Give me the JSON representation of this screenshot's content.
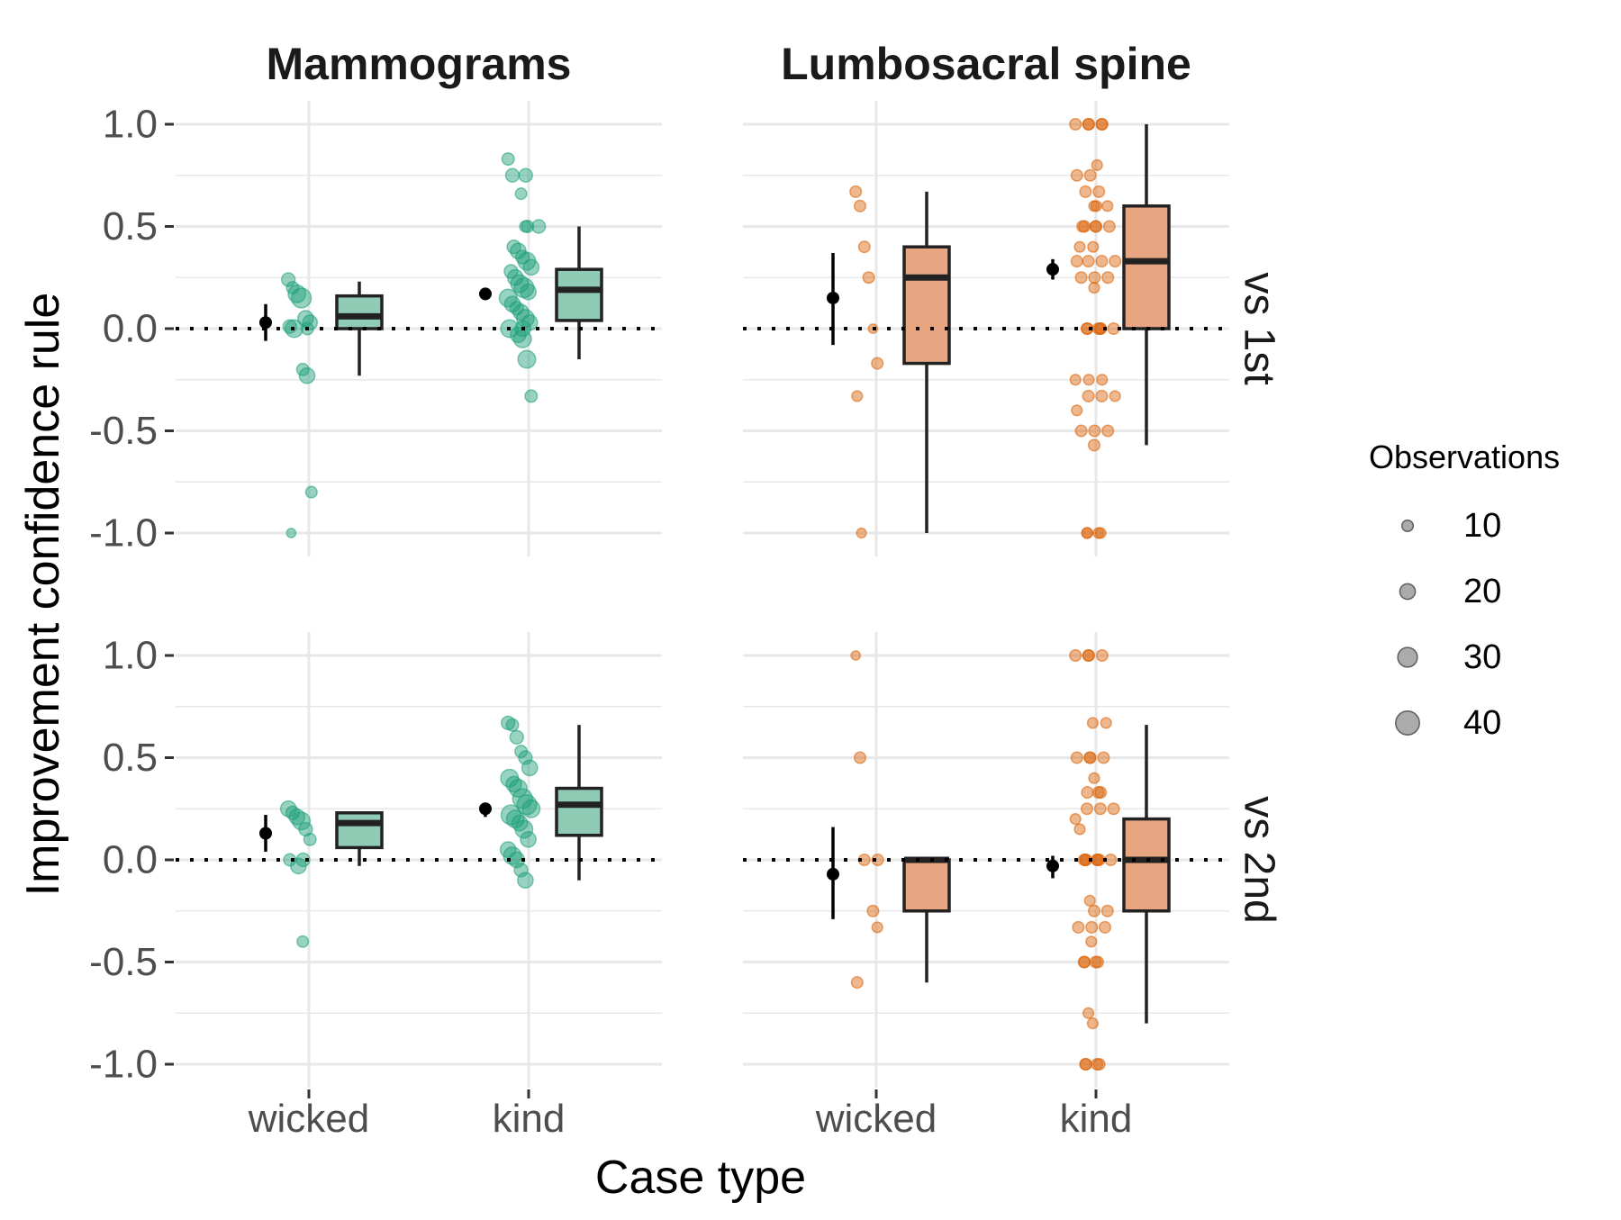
{
  "colors": {
    "mammograms": "#1b9e77",
    "mammograms_box": "#8fcbb5",
    "spine": "#d95f02",
    "spine_box": "#e8a582",
    "grid": "#e8e8e8",
    "text": "#4d4d4d"
  },
  "chart_data": {
    "type": "scatter",
    "columns": [
      "Mammograms",
      "Lumbosacral spine"
    ],
    "rows": [
      "vs 1st",
      "vs 2nd"
    ],
    "xlabel": "Case type",
    "ylabel": "Improvement confidence rule",
    "categories": [
      "wicked",
      "kind"
    ],
    "ylim": [
      -1.1,
      1.1
    ],
    "yticks": [
      {
        "value": 1.0,
        "label": "1.0"
      },
      {
        "value": 0.5,
        "label": "0.5"
      },
      {
        "value": 0.0,
        "label": "0.0"
      },
      {
        "value": -0.5,
        "label": "-0.5"
      },
      {
        "value": -1.0,
        "label": "-1.0"
      }
    ],
    "reference_line": 0,
    "legend": {
      "title": "Observations",
      "position": "right",
      "entries": [
        {
          "label": "10",
          "size": 10
        },
        {
          "label": "20",
          "size": 20
        },
        {
          "label": "30",
          "size": 30
        },
        {
          "label": "40",
          "size": 40
        }
      ]
    },
    "panels": [
      {
        "col": "Mammograms",
        "row": "vs 1st",
        "color_key": "mammograms",
        "groups": [
          {
            "category": "wicked",
            "mean": 0.03,
            "ci": [
              -0.06,
              0.12
            ],
            "box": {
              "min": -0.23,
              "q1": 0.0,
              "median": 0.06,
              "q3": 0.16,
              "max": 0.23
            },
            "points": [
              [
                0.24,
                15
              ],
              [
                0.2,
                12
              ],
              [
                0.17,
                25
              ],
              [
                0.15,
                30
              ],
              [
                0.05,
                20
              ],
              [
                0.03,
                18
              ],
              [
                0.01,
                15
              ],
              [
                0.0,
                25
              ],
              [
                0.0,
                12
              ],
              [
                -0.2,
                12
              ],
              [
                -0.23,
                20
              ],
              [
                -0.8,
                10
              ],
              [
                -1.0,
                5
              ]
            ]
          },
          {
            "category": "kind",
            "mean": 0.17,
            "ci": [
              0.14,
              0.2
            ],
            "box": {
              "min": -0.15,
              "q1": 0.04,
              "median": 0.19,
              "q3": 0.29,
              "max": 0.5
            },
            "points": [
              [
                0.83,
                12
              ],
              [
                0.75,
                15
              ],
              [
                0.75,
                15
              ],
              [
                0.66,
                10
              ],
              [
                0.5,
                10
              ],
              [
                0.5,
                15
              ],
              [
                0.5,
                12
              ],
              [
                0.4,
                15
              ],
              [
                0.38,
                20
              ],
              [
                0.35,
                15
              ],
              [
                0.33,
                25
              ],
              [
                0.3,
                20
              ],
              [
                0.28,
                15
              ],
              [
                0.25,
                20
              ],
              [
                0.22,
                25
              ],
              [
                0.2,
                30
              ],
              [
                0.18,
                20
              ],
              [
                0.15,
                25
              ],
              [
                0.12,
                20
              ],
              [
                0.1,
                15
              ],
              [
                0.08,
                20
              ],
              [
                0.05,
                25
              ],
              [
                0.03,
                20
              ],
              [
                0.0,
                25
              ],
              [
                0.0,
                20
              ],
              [
                -0.03,
                20
              ],
              [
                -0.05,
                25
              ],
              [
                -0.15,
                25
              ],
              [
                -0.33,
                12
              ]
            ]
          }
        ]
      },
      {
        "col": "Lumbosacral spine",
        "row": "vs 1st",
        "color_key": "spine",
        "groups": [
          {
            "category": "wicked",
            "mean": 0.15,
            "ci": [
              -0.08,
              0.37
            ],
            "box": {
              "min": -1.0,
              "q1": -0.17,
              "median": 0.25,
              "q3": 0.4,
              "max": 0.67
            },
            "points": [
              [
                0.67,
                10
              ],
              [
                0.6,
                10
              ],
              [
                0.4,
                10
              ],
              [
                0.25,
                10
              ],
              [
                0.0,
                5
              ],
              [
                -0.17,
                10
              ],
              [
                -0.33,
                8
              ],
              [
                -1.0,
                6
              ]
            ]
          },
          {
            "category": "kind",
            "mean": 0.29,
            "ci": [
              0.24,
              0.34
            ],
            "box": {
              "min": -0.57,
              "q1": 0.0,
              "median": 0.33,
              "q3": 0.6,
              "max": 1.0
            },
            "points": [
              [
                1.0,
                10
              ],
              [
                1.0,
                10
              ],
              [
                1.0,
                10
              ],
              [
                1.0,
                10
              ],
              [
                1.0,
                10
              ],
              [
                0.8,
                8
              ],
              [
                0.75,
                10
              ],
              [
                0.75,
                10
              ],
              [
                0.67,
                10
              ],
              [
                0.67,
                10
              ],
              [
                0.6,
                8
              ],
              [
                0.6,
                8
              ],
              [
                0.6,
                8
              ],
              [
                0.5,
                10
              ],
              [
                0.5,
                10
              ],
              [
                0.5,
                10
              ],
              [
                0.5,
                10
              ],
              [
                0.5,
                10
              ],
              [
                0.4,
                8
              ],
              [
                0.4,
                8
              ],
              [
                0.33,
                10
              ],
              [
                0.33,
                10
              ],
              [
                0.33,
                10
              ],
              [
                0.33,
                10
              ],
              [
                0.25,
                10
              ],
              [
                0.25,
                10
              ],
              [
                0.25,
                10
              ],
              [
                0.2,
                8
              ],
              [
                0.0,
                10
              ],
              [
                0.0,
                10
              ],
              [
                0.0,
                10
              ],
              [
                0.0,
                10
              ],
              [
                0.0,
                10
              ],
              [
                0.0,
                10
              ],
              [
                -0.25,
                8
              ],
              [
                -0.25,
                8
              ],
              [
                -0.25,
                8
              ],
              [
                -0.33,
                10
              ],
              [
                -0.33,
                10
              ],
              [
                -0.33,
                8
              ],
              [
                -0.4,
                8
              ],
              [
                -0.5,
                10
              ],
              [
                -0.5,
                10
              ],
              [
                -0.5,
                10
              ],
              [
                -0.57,
                10
              ],
              [
                -1.0,
                8
              ],
              [
                -1.0,
                8
              ],
              [
                -1.0,
                8
              ],
              [
                -1.0,
                8
              ]
            ]
          }
        ]
      },
      {
        "col": "Mammograms",
        "row": "vs 2nd",
        "color_key": "mammograms",
        "groups": [
          {
            "category": "wicked",
            "mean": 0.13,
            "ci": [
              0.04,
              0.22
            ],
            "box": {
              "min": -0.03,
              "q1": 0.06,
              "median": 0.18,
              "q3": 0.23,
              "max": 0.23
            },
            "points": [
              [
                0.25,
                20
              ],
              [
                0.23,
                15
              ],
              [
                0.21,
                20
              ],
              [
                0.19,
                25
              ],
              [
                0.15,
                15
              ],
              [
                0.1,
                12
              ],
              [
                0.0,
                12
              ],
              [
                0.0,
                15
              ],
              [
                -0.03,
                20
              ],
              [
                -0.4,
                10
              ]
            ]
          },
          {
            "category": "kind",
            "mean": 0.25,
            "ci": [
              0.21,
              0.28
            ],
            "box": {
              "min": -0.1,
              "q1": 0.12,
              "median": 0.27,
              "q3": 0.35,
              "max": 0.66
            },
            "points": [
              [
                0.67,
                15
              ],
              [
                0.66,
                12
              ],
              [
                0.6,
                15
              ],
              [
                0.53,
                12
              ],
              [
                0.5,
                15
              ],
              [
                0.45,
                20
              ],
              [
                0.4,
                25
              ],
              [
                0.37,
                20
              ],
              [
                0.35,
                25
              ],
              [
                0.3,
                30
              ],
              [
                0.27,
                30
              ],
              [
                0.25,
                25
              ],
              [
                0.22,
                30
              ],
              [
                0.2,
                25
              ],
              [
                0.18,
                20
              ],
              [
                0.15,
                25
              ],
              [
                0.1,
                20
              ],
              [
                0.05,
                20
              ],
              [
                0.02,
                25
              ],
              [
                0.0,
                20
              ],
              [
                -0.05,
                15
              ],
              [
                -0.1,
                20
              ]
            ]
          }
        ]
      },
      {
        "col": "Lumbosacral spine",
        "row": "vs 2nd",
        "color_key": "spine",
        "groups": [
          {
            "category": "wicked",
            "mean": -0.07,
            "ci": [
              -0.29,
              0.16
            ],
            "box": {
              "min": -0.6,
              "q1": -0.25,
              "median": 0.0,
              "q3": 0.0,
              "max": 0.0
            },
            "points": [
              [
                1.0,
                5
              ],
              [
                0.5,
                10
              ],
              [
                0.0,
                10
              ],
              [
                0.0,
                10
              ],
              [
                -0.25,
                10
              ],
              [
                -0.33,
                8
              ],
              [
                -0.6,
                10
              ]
            ]
          },
          {
            "category": "kind",
            "mean": -0.03,
            "ci": [
              -0.09,
              0.02
            ],
            "box": {
              "min": -0.8,
              "q1": -0.25,
              "median": 0.0,
              "q3": 0.2,
              "max": 0.66
            },
            "points": [
              [
                1.0,
                10
              ],
              [
                1.0,
                10
              ],
              [
                1.0,
                10
              ],
              [
                1.0,
                10
              ],
              [
                0.67,
                8
              ],
              [
                0.67,
                8
              ],
              [
                0.5,
                10
              ],
              [
                0.5,
                10
              ],
              [
                0.5,
                10
              ],
              [
                0.5,
                10
              ],
              [
                0.4,
                8
              ],
              [
                0.33,
                10
              ],
              [
                0.33,
                10
              ],
              [
                0.33,
                10
              ],
              [
                0.25,
                10
              ],
              [
                0.25,
                10
              ],
              [
                0.25,
                10
              ],
              [
                0.2,
                8
              ],
              [
                0.15,
                8
              ],
              [
                0.0,
                10
              ],
              [
                0.0,
                10
              ],
              [
                0.0,
                10
              ],
              [
                0.0,
                10
              ],
              [
                0.0,
                10
              ],
              [
                0.0,
                10
              ],
              [
                0.0,
                10
              ],
              [
                -0.2,
                8
              ],
              [
                -0.25,
                10
              ],
              [
                -0.25,
                10
              ],
              [
                -0.33,
                10
              ],
              [
                -0.33,
                10
              ],
              [
                -0.33,
                10
              ],
              [
                -0.4,
                8
              ],
              [
                -0.5,
                10
              ],
              [
                -0.5,
                10
              ],
              [
                -0.5,
                10
              ],
              [
                -0.5,
                10
              ],
              [
                -0.75,
                8
              ],
              [
                -0.8,
                8
              ],
              [
                -1.0,
                10
              ],
              [
                -1.0,
                10
              ],
              [
                -1.0,
                10
              ],
              [
                -1.0,
                10
              ]
            ]
          }
        ]
      }
    ]
  }
}
